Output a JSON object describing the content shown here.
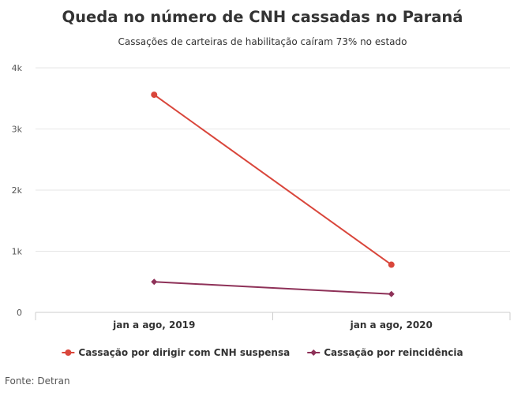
{
  "chart_data": {
    "type": "line",
    "title": "Queda no número de CNH cassadas no Paraná",
    "subtitle": "Cassações de carteiras de habilitação caíram 73% no estado",
    "categories": [
      "jan a ago, 2019",
      "jan a ago, 2020"
    ],
    "ylim": [
      0,
      4000
    ],
    "yticks": [
      0,
      1000,
      2000,
      3000,
      4000
    ],
    "ytick_labels": [
      "0",
      "1k",
      "2k",
      "3k",
      "4k"
    ],
    "grid": true,
    "legend_position": "bottom-center",
    "series": [
      {
        "name": "Cassação por dirigir com CNH suspensa",
        "values": [
          3560,
          780
        ],
        "color": "#d9463b",
        "marker": "circle"
      },
      {
        "name": "Cassação por reincidência",
        "values": [
          500,
          300
        ],
        "color": "#8e3158",
        "marker": "diamond"
      }
    ],
    "credits": "Fonte: Detran"
  }
}
